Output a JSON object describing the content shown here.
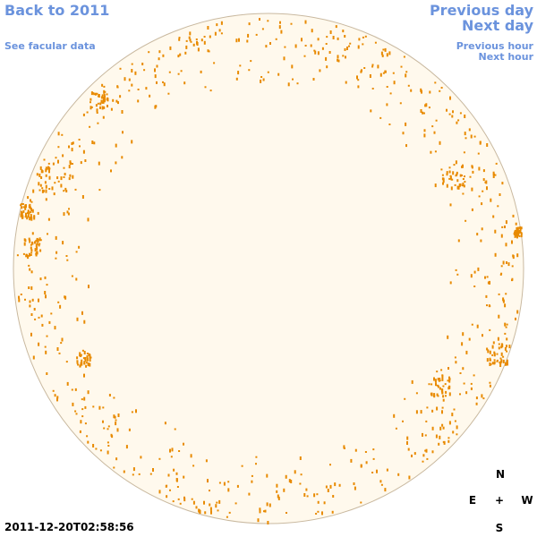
{
  "nav": {
    "back": "Back to 2011",
    "see_facular": "See facular data",
    "previous_day": "Previous day",
    "next_day": "Next day",
    "previous_hour": "Previous hour",
    "next_hour": "Next hour"
  },
  "timestamp": "2011-12-20T02:58:56",
  "compass": {
    "north": "N",
    "east": "E",
    "center": "+",
    "west": "W",
    "south": "S"
  }
}
